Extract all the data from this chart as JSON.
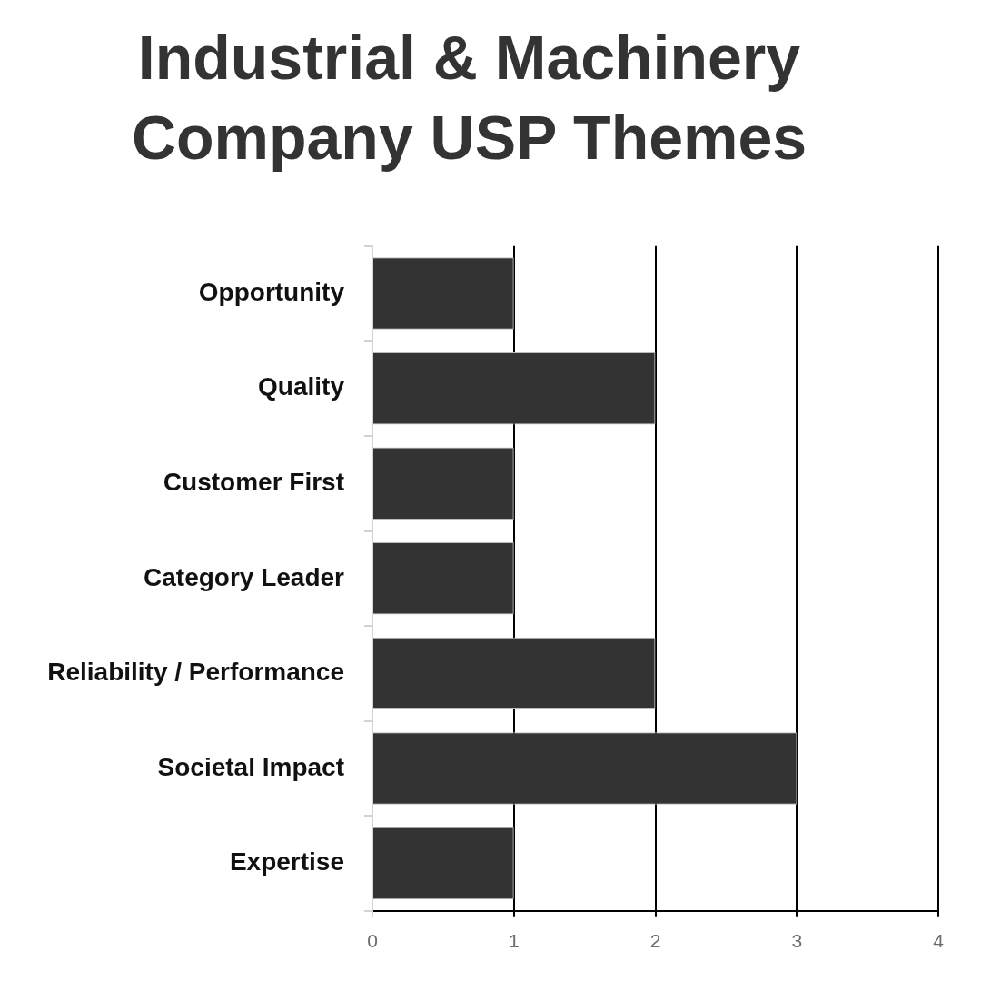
{
  "chart_data": {
    "type": "bar",
    "orientation": "horizontal",
    "title": [
      "Industrial & Machinery",
      "Company USP Themes"
    ],
    "categories": [
      "Opportunity",
      "Quality",
      "Customer First",
      "Category Leader",
      "Reliability / Performance",
      "Societal Impact",
      "Expertise"
    ],
    "values": [
      1,
      2,
      1,
      1,
      2,
      3,
      1
    ],
    "color": "#333333",
    "xlim": [
      0,
      4
    ],
    "xticks": [
      0,
      1,
      2,
      3,
      4
    ],
    "grid": "x",
    "legend": false
  }
}
